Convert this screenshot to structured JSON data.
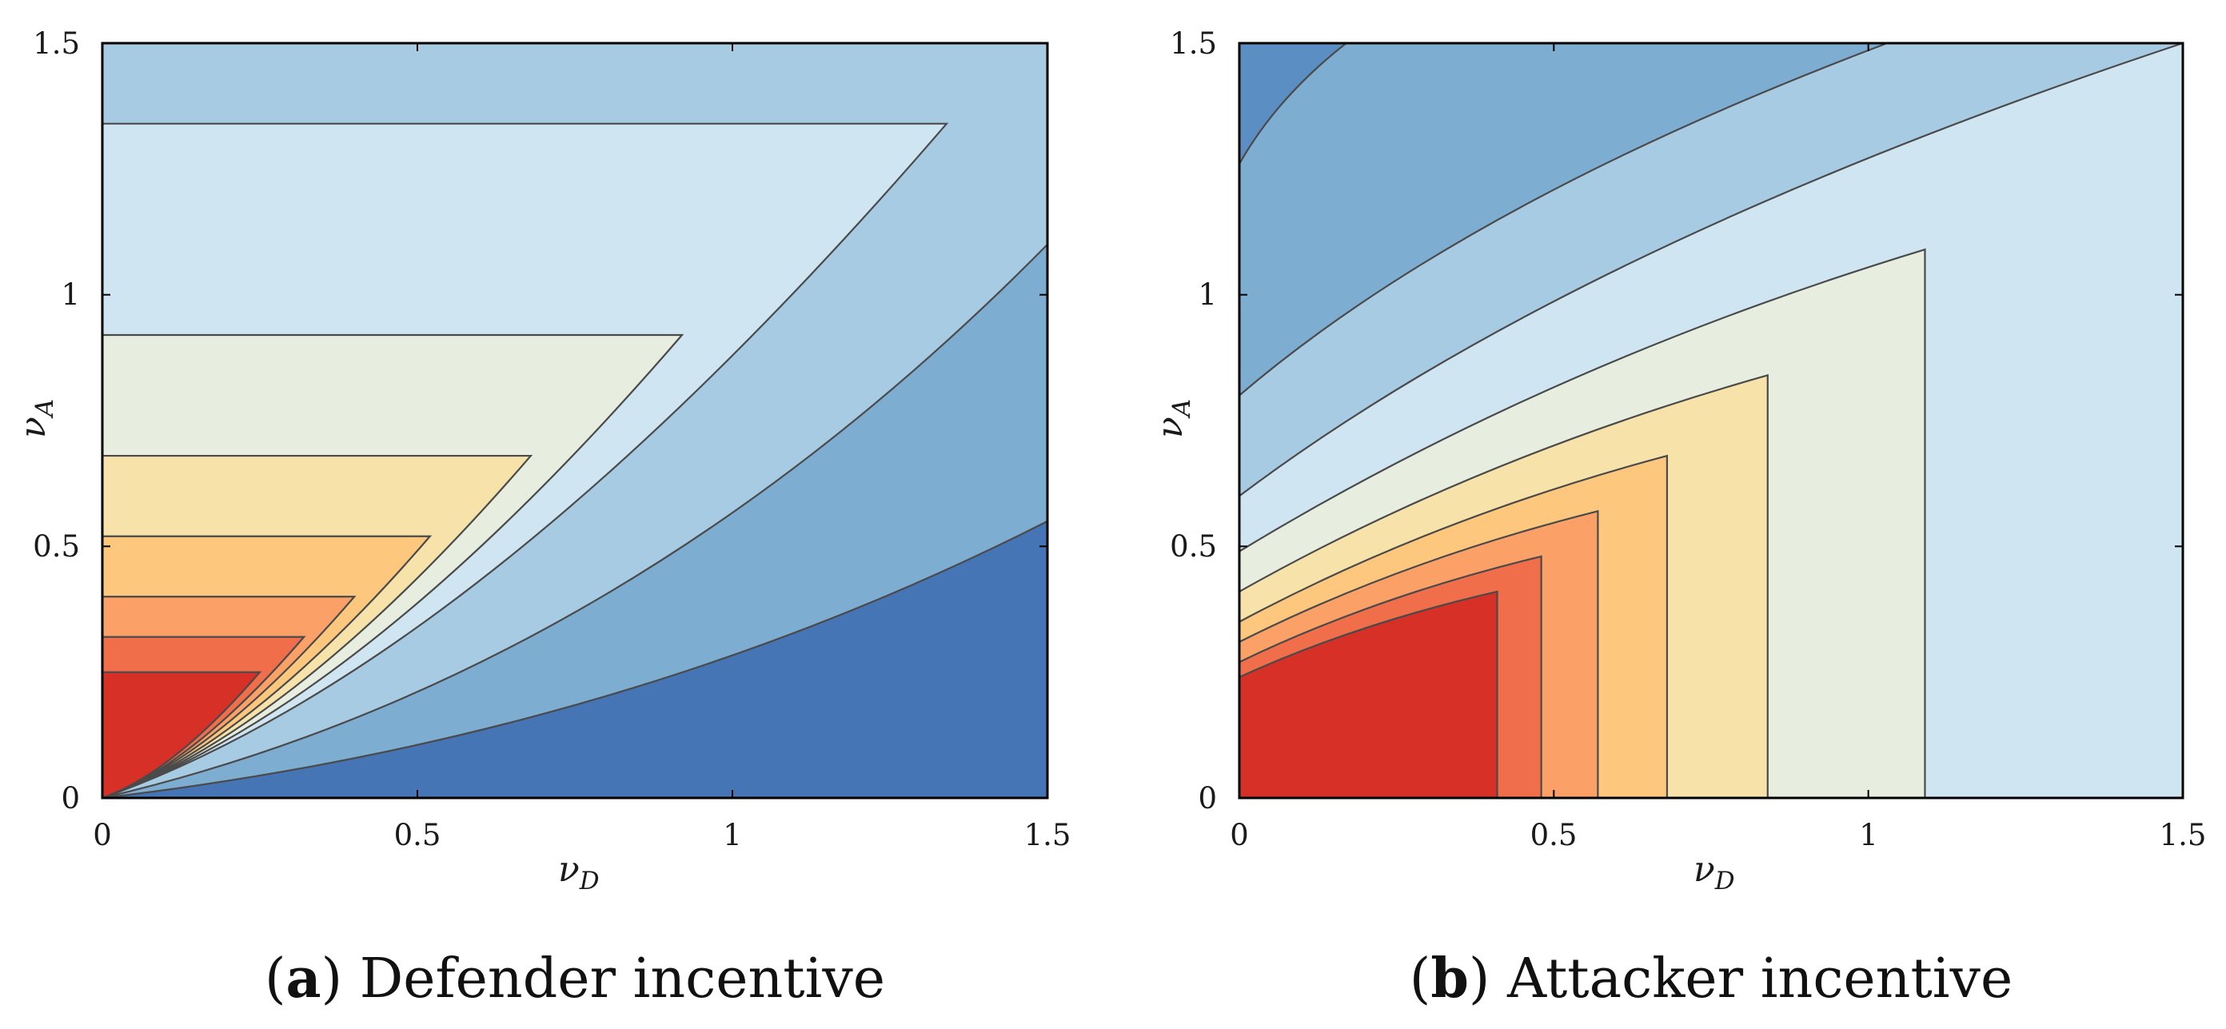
{
  "chart_data": [
    {
      "type": "contour",
      "caption_letter": "a",
      "caption_text": "Defender incentive",
      "xlabel": "ν",
      "xlabel_sub": "D",
      "ylabel": "ν",
      "ylabel_sub": "A",
      "xlim": [
        0,
        1.5
      ],
      "ylim": [
        0,
        1.5
      ],
      "xticks": [
        "0",
        "0.5",
        "1",
        "1.5"
      ],
      "yticks": [
        "0",
        "0.5",
        "1",
        "1.5"
      ],
      "grid": false,
      "regions": [
        {
          "level": 1,
          "color": "#a6cbe3",
          "knee": [
            1.5,
            1.5
          ]
        },
        {
          "level": 2,
          "color": "#cfe5f1",
          "knee": [
            1.34,
            1.34
          ]
        },
        {
          "level": 3,
          "color": "#e7eedf",
          "knee": [
            0.92,
            0.92
          ]
        },
        {
          "level": 4,
          "color": "#f7e3aa",
          "knee": [
            0.68,
            0.68
          ]
        },
        {
          "level": 5,
          "color": "#fdc77e",
          "knee": [
            0.52,
            0.52
          ]
        },
        {
          "level": 6,
          "color": "#fba167",
          "knee": [
            0.4,
            0.4
          ]
        },
        {
          "level": 7,
          "color": "#f16e4b",
          "knee": [
            0.32,
            0.32
          ]
        },
        {
          "level": 8,
          "color": "#d73027",
          "knee": [
            0.25,
            0.25
          ]
        }
      ],
      "lower_regions": [
        {
          "level": -1,
          "color": "#7eadd2",
          "end": [
            1.5,
            1.1
          ]
        },
        {
          "level": -2,
          "color": "#4575b4",
          "end": [
            1.5,
            0.55
          ]
        }
      ]
    },
    {
      "type": "contour",
      "caption_letter": "b",
      "caption_text": "Attacker incentive",
      "xlabel": "ν",
      "xlabel_sub": "D",
      "ylabel": "ν",
      "ylabel_sub": "A",
      "xlim": [
        0,
        1.5
      ],
      "ylim": [
        0,
        1.5
      ],
      "xticks": [
        "0",
        "0.5",
        "1",
        "1.5"
      ],
      "yticks": [
        "0",
        "0.5",
        "1",
        "1.5"
      ],
      "grid": false,
      "background_color": "#cfe5f1",
      "regions": [
        {
          "level": 1,
          "color": "#e7eedf",
          "x_edge": 1.09,
          "y0": 0.49,
          "y_top": 1.09
        },
        {
          "level": 2,
          "color": "#f7e3aa",
          "x_edge": 0.84,
          "y0": 0.41,
          "y_top": 0.84
        },
        {
          "level": 3,
          "color": "#fdc77e",
          "x_edge": 0.68,
          "y0": 0.35,
          "y_top": 0.68
        },
        {
          "level": 4,
          "color": "#fba167",
          "x_edge": 0.57,
          "y0": 0.31,
          "y_top": 0.57
        },
        {
          "level": 5,
          "color": "#f16e4b",
          "x_edge": 0.48,
          "y0": 0.27,
          "y_top": 0.48
        },
        {
          "level": 6,
          "color": "#d73027",
          "x_edge": 0.41,
          "y0": 0.24,
          "y_top": 0.41
        }
      ],
      "upper_regions": [
        {
          "level": -1,
          "color": "#a6cbe3",
          "y0": 0.6,
          "end": [
            1.5,
            1.5
          ]
        },
        {
          "level": -2,
          "color": "#7eadd2",
          "y0": 0.8,
          "end": [
            1.03,
            1.5
          ]
        },
        {
          "level": -3,
          "color": "#5b8ec2",
          "y0": 1.26,
          "end": [
            0.17,
            1.5
          ]
        }
      ]
    }
  ]
}
